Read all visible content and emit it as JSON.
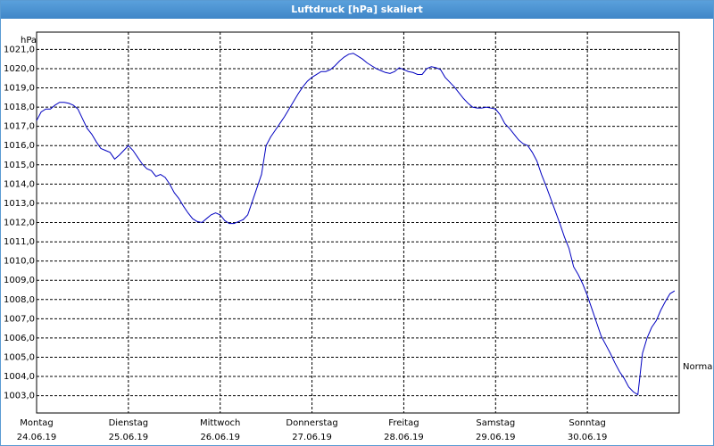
{
  "chart_data": {
    "type": "line",
    "title": "Luftdruck [hPa] skaliert",
    "y_label": "hPa",
    "annotation": {
      "label": "Normal",
      "value": 1004.5
    },
    "xlim": [
      0,
      7
    ],
    "xticks": [
      {
        "value": 0,
        "label": "Montag"
      },
      {
        "value": 1,
        "label": "Dienstag"
      },
      {
        "value": 2,
        "label": "Mittwoch"
      },
      {
        "value": 3,
        "label": "Donnerstag"
      },
      {
        "value": 4,
        "label": "Freitag"
      },
      {
        "value": 5,
        "label": "Samstag"
      },
      {
        "value": 6,
        "label": "Sonntag"
      }
    ],
    "xtick_dates": [
      "24.06.19",
      "25.06.19",
      "26.06.19",
      "27.06.19",
      "28.06.19",
      "29.06.19",
      "30.06.19"
    ],
    "ylim": [
      1002.1,
      1021.9
    ],
    "yticks": [
      {
        "value": 1003,
        "label": "1003,0"
      },
      {
        "value": 1004,
        "label": "1004,0"
      },
      {
        "value": 1005,
        "label": "1005,0"
      },
      {
        "value": 1006,
        "label": "1006,0"
      },
      {
        "value": 1007,
        "label": "1007,0"
      },
      {
        "value": 1008,
        "label": "1008,0"
      },
      {
        "value": 1009,
        "label": "1009,0"
      },
      {
        "value": 1010,
        "label": "1010,0"
      },
      {
        "value": 1011,
        "label": "1011,0"
      },
      {
        "value": 1012,
        "label": "1012,0"
      },
      {
        "value": 1013,
        "label": "1013,0"
      },
      {
        "value": 1014,
        "label": "1014,0"
      },
      {
        "value": 1015,
        "label": "1015,0"
      },
      {
        "value": 1016,
        "label": "1016,0"
      },
      {
        "value": 1017,
        "label": "1017,0"
      },
      {
        "value": 1018,
        "label": "1018,0"
      },
      {
        "value": 1019,
        "label": "1019,0"
      },
      {
        "value": 1020,
        "label": "1020,0"
      },
      {
        "value": 1021,
        "label": "1021,0"
      }
    ],
    "grid": true,
    "x": [
      0,
      0.05,
      0.1,
      0.15,
      0.2,
      0.25,
      0.3,
      0.35,
      0.4,
      0.45,
      0.5,
      0.55,
      0.6,
      0.65,
      0.7,
      0.75,
      0.8,
      0.85,
      0.9,
      0.95,
      1,
      1.05,
      1.1,
      1.15,
      1.2,
      1.25,
      1.3,
      1.35,
      1.4,
      1.45,
      1.5,
      1.55,
      1.6,
      1.65,
      1.7,
      1.75,
      1.8,
      1.85,
      1.9,
      1.95,
      2,
      2.05,
      2.1,
      2.15,
      2.2,
      2.25,
      2.3,
      2.35,
      2.4,
      2.45,
      2.5,
      2.55,
      2.6,
      2.65,
      2.7,
      2.75,
      2.8,
      2.85,
      2.9,
      2.95,
      3,
      3.05,
      3.1,
      3.15,
      3.2,
      3.25,
      3.3,
      3.35,
      3.4,
      3.45,
      3.5,
      3.55,
      3.6,
      3.65,
      3.7,
      3.75,
      3.8,
      3.85,
      3.9,
      3.95,
      4,
      4.05,
      4.1,
      4.15,
      4.2,
      4.25,
      4.3,
      4.35,
      4.4,
      4.45,
      4.5,
      4.55,
      4.6,
      4.65,
      4.7,
      4.75,
      4.8,
      4.85,
      4.9,
      4.95,
      5,
      5.05,
      5.1,
      5.15,
      5.2,
      5.25,
      5.3,
      5.35,
      5.4,
      5.45,
      5.5,
      5.55,
      5.6,
      5.65,
      5.7,
      5.75,
      5.8,
      5.85,
      5.9,
      5.95,
      6,
      6.05,
      6.1,
      6.15,
      6.2,
      6.25,
      6.3,
      6.35,
      6.4,
      6.45,
      6.5,
      6.55,
      6.6,
      6.65,
      6.7,
      6.75,
      6.8,
      6.85,
      6.9,
      6.95
    ],
    "series": [
      {
        "color": "#0000c0",
        "values": [
          1017.3,
          1017.75,
          1017.9,
          1017.9,
          1018.1,
          1018.25,
          1018.25,
          1018.2,
          1018.1,
          1017.9,
          1017.4,
          1016.9,
          1016.6,
          1016.2,
          1015.85,
          1015.75,
          1015.65,
          1015.3,
          1015.5,
          1015.75,
          1016.0,
          1015.75,
          1015.4,
          1015.05,
          1014.8,
          1014.7,
          1014.4,
          1014.5,
          1014.35,
          1014.0,
          1013.55,
          1013.25,
          1012.85,
          1012.5,
          1012.2,
          1012.05,
          1012.0,
          1012.2,
          1012.4,
          1012.5,
          1012.4,
          1012.1,
          1011.95,
          1011.95,
          1012.05,
          1012.15,
          1012.4,
          1013.1,
          1013.8,
          1014.5,
          1016.0,
          1016.45,
          1016.8,
          1017.15,
          1017.5,
          1017.9,
          1018.3,
          1018.7,
          1019.05,
          1019.35,
          1019.55,
          1019.7,
          1019.85,
          1019.85,
          1019.95,
          1020.15,
          1020.4,
          1020.6,
          1020.75,
          1020.8,
          1020.65,
          1020.5,
          1020.3,
          1020.15,
          1020.0,
          1019.9,
          1019.8,
          1019.75,
          1019.85,
          1020.05,
          1019.95,
          1019.85,
          1019.8,
          1019.7,
          1019.7,
          1020.0,
          1020.1,
          1020.05,
          1019.95,
          1019.55,
          1019.3,
          1019.05,
          1018.75,
          1018.45,
          1018.2,
          1018.0,
          1017.95,
          1017.95,
          1018.0,
          1017.95,
          1017.9,
          1017.6,
          1017.15,
          1016.9,
          1016.6,
          1016.3,
          1016.1,
          1016.0,
          1015.65,
          1015.2,
          1014.5,
          1013.9,
          1013.25,
          1012.6,
          1011.95,
          1011.25,
          1010.65,
          1009.7,
          1009.3,
          1008.8,
          1008.2,
          1007.5,
          1006.8,
          1006.1,
          1005.65,
          1005.2,
          1004.7,
          1004.25,
          1003.9,
          1003.45,
          1003.2,
          1003.05,
          1005.2,
          1006.0,
          1006.55,
          1006.9,
          1007.45,
          1007.9,
          1008.3,
          1008.45
        ]
      }
    ]
  }
}
